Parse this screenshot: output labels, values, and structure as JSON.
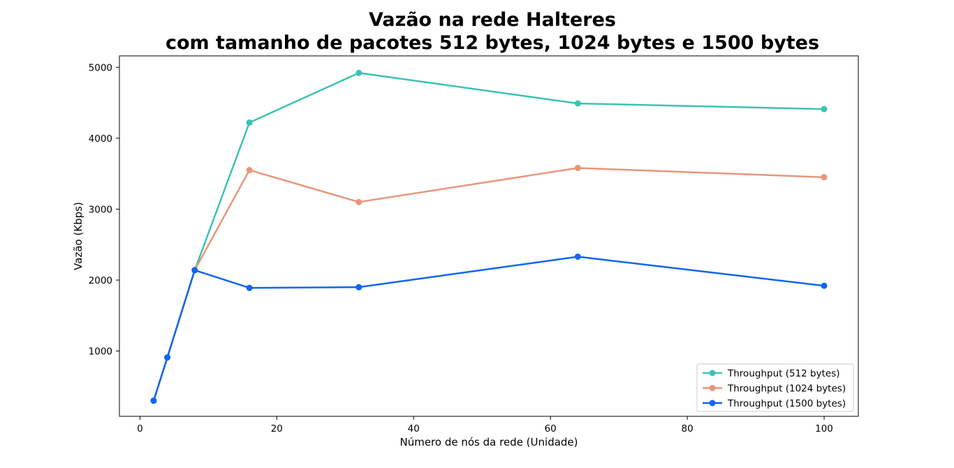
{
  "chart_data": {
    "type": "line",
    "title_lines": [
      "Vazão na rede Halteres",
      "com tamanho de pacotes 512 bytes, 1024 bytes e 1500 bytes"
    ],
    "xlabel": "Número de nós da rede (Unidade)",
    "ylabel": "Vazão (Kbps)",
    "xlim": [
      -3,
      105
    ],
    "ylim": [
      80,
      5160
    ],
    "xticks": [
      0,
      20,
      40,
      60,
      80,
      100
    ],
    "yticks": [
      1000,
      2000,
      3000,
      4000,
      5000
    ],
    "grid": false,
    "legend_position": "lower-right",
    "series": [
      {
        "name": "Throughput (512 bytes)",
        "color": "#3cc2b4",
        "points": [
          [
            2,
            300
          ],
          [
            4,
            910
          ],
          [
            8,
            2140
          ],
          [
            16,
            4220
          ],
          [
            32,
            4920
          ],
          [
            64,
            4490
          ],
          [
            100,
            4410
          ]
        ]
      },
      {
        "name": "Throughput (1024 bytes)",
        "color": "#e8967a",
        "points": [
          [
            2,
            300
          ],
          [
            4,
            910
          ],
          [
            8,
            2140
          ],
          [
            16,
            3550
          ],
          [
            32,
            3100
          ],
          [
            64,
            3580
          ],
          [
            100,
            3450
          ]
        ]
      },
      {
        "name": "Throughput (1500 bytes)",
        "color": "#0f66ee",
        "points": [
          [
            2,
            300
          ],
          [
            4,
            910
          ],
          [
            8,
            2140
          ],
          [
            16,
            1890
          ],
          [
            32,
            1900
          ],
          [
            64,
            2330
          ],
          [
            100,
            1920
          ]
        ]
      }
    ]
  }
}
